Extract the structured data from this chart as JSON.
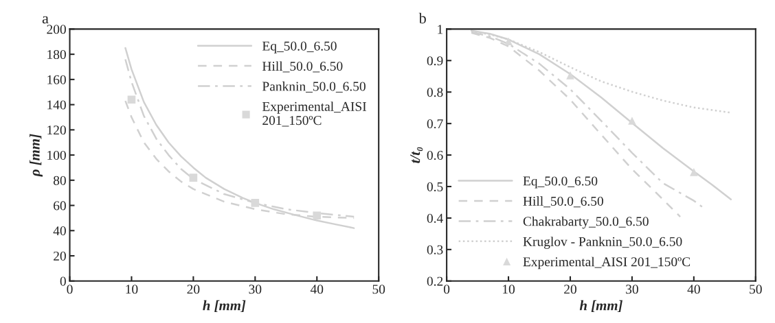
{
  "chart_data": [
    {
      "type": "line",
      "title": "a",
      "xlabel": "h [mm]",
      "ylabel": "ρ [mm]",
      "xlim": [
        0,
        50
      ],
      "ylim": [
        0,
        200
      ],
      "xticks": [
        0,
        10,
        20,
        30,
        40,
        50
      ],
      "yticks": [
        0,
        20,
        40,
        60,
        80,
        100,
        120,
        140,
        160,
        180,
        200
      ],
      "grid": false,
      "legend": "top right",
      "series": [
        {
          "name": "Eq_50.0_6.50",
          "color": "#d0d0d0",
          "line_style": "solid",
          "x": [
            9,
            10,
            12,
            14,
            16,
            18,
            20,
            22,
            25,
            28,
            30,
            33,
            36,
            40,
            43,
            46
          ],
          "values": [
            185,
            168,
            142,
            124,
            110,
            99,
            90,
            82,
            73,
            66,
            62,
            57,
            53,
            48,
            45,
            42
          ]
        },
        {
          "name": "Hill_50.0_6.50",
          "color": "#d0d0d0",
          "line_style": "dashed",
          "x": [
            9,
            10,
            12,
            14,
            16,
            18,
            20,
            25,
            30,
            35,
            40,
            46
          ],
          "values": [
            143,
            130,
            110,
            97,
            87,
            79,
            73,
            63,
            57,
            53,
            51,
            50
          ]
        },
        {
          "name": "Panknin_50.0_6.50",
          "color": "#d0d0d0",
          "line_style": "dashdot",
          "x": [
            9,
            10,
            12,
            14,
            16,
            18,
            20,
            25,
            30,
            35,
            40,
            46
          ],
          "values": [
            176,
            158,
            131,
            113,
            100,
            89,
            81,
            69,
            62,
            57,
            54,
            51
          ]
        },
        {
          "name": "Experimental_AISI\n201_150ºC",
          "type": "scatter",
          "marker": "square",
          "color": "#d9d9d9",
          "x": [
            10,
            20,
            30,
            40
          ],
          "values": [
            144,
            82,
            62,
            52
          ]
        }
      ]
    },
    {
      "type": "line",
      "title": "b",
      "xlabel": "h [mm]",
      "ylabel": "t/t₀",
      "xlim": [
        0,
        50
      ],
      "ylim": [
        0.2,
        1
      ],
      "xticks": [
        0,
        10,
        20,
        30,
        40,
        50
      ],
      "yticks": [
        0.2,
        0.3,
        0.4,
        0.5,
        0.6,
        0.7,
        0.8,
        0.9,
        1
      ],
      "grid": false,
      "legend": "bottom left",
      "series": [
        {
          "name": "Eq_50.0_6.50",
          "color": "#d0d0d0",
          "line_style": "solid",
          "x": [
            4,
            7,
            10,
            15,
            20,
            25,
            30,
            35,
            40,
            43,
            46
          ],
          "values": [
            0.995,
            0.985,
            0.967,
            0.92,
            0.857,
            0.783,
            0.702,
            0.622,
            0.548,
            0.505,
            0.459
          ]
        },
        {
          "name": "Hill_50.0_6.50",
          "color": "#d0d0d0",
          "line_style": "dashed",
          "x": [
            4,
            7,
            10,
            15,
            20,
            25,
            30,
            35,
            37.8
          ],
          "values": [
            0.988,
            0.972,
            0.945,
            0.868,
            0.776,
            0.665,
            0.555,
            0.459,
            0.404
          ]
        },
        {
          "name": "Chakrabarty_50.0_6.50",
          "color": "#d0d0d0",
          "line_style": "dashdot",
          "x": [
            4,
            7,
            10,
            15,
            20,
            25,
            30,
            35,
            40,
            41.5
          ],
          "values": [
            0.99,
            0.977,
            0.953,
            0.89,
            0.809,
            0.709,
            0.607,
            0.511,
            0.455,
            0.433
          ]
        },
        {
          "name": "Kruglov - Panknin_50.0_6.50",
          "color": "#d0d0d0",
          "line_style": "dotted",
          "x": [
            4,
            7,
            10,
            15,
            20,
            25,
            30,
            35,
            40,
            45.8
          ],
          "values": [
            0.993,
            0.983,
            0.967,
            0.927,
            0.879,
            0.834,
            0.801,
            0.773,
            0.751,
            0.735
          ]
        },
        {
          "name": "Experimental_AISI 201_150ºC",
          "type": "scatter",
          "marker": "triangle",
          "color": "#d9d9d9",
          "x": [
            10,
            20,
            30,
            40
          ],
          "values": [
            0.961,
            0.853,
            0.709,
            0.546
          ]
        }
      ]
    }
  ]
}
